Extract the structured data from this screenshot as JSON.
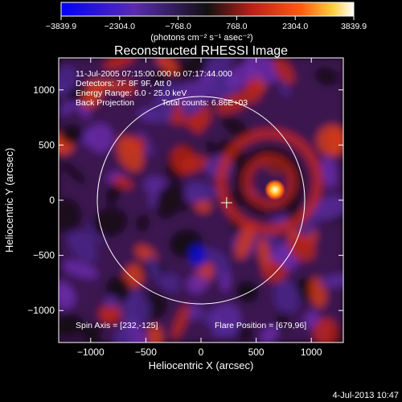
{
  "colorbar": {
    "ticks": [
      "−3839.9",
      "−2304.0",
      "−768.0",
      "768.0",
      "2304.0",
      "3839.9"
    ],
    "units": "(photons cm⁻² s⁻¹ asec⁻²)",
    "min": -3839.9,
    "max": 3839.9
  },
  "footer": {
    "timestamp": "4-Jul-2013 10:47"
  },
  "chart_data": {
    "type": "heatmap",
    "title": "Reconstructed RHESSI Image",
    "xlabel": "Heliocentric X (arcsec)",
    "ylabel": "Heliocentric Y (arcsec)",
    "xlim": [
      -1290,
      1290
    ],
    "ylim": [
      -1290,
      1290
    ],
    "xticks": [
      -1000,
      -500,
      0,
      500,
      1000
    ],
    "yticks": [
      -1000,
      -500,
      0,
      500,
      1000
    ],
    "annotations": {
      "line1": "11-Jul-2005 07:15:00.000 to 07:17:44.000",
      "line2": "Detectors: 7F 8F 9F, Att 0",
      "line3": "Energy Range: 6.0 - 25.0 keV",
      "line4_left": "Back Projection",
      "line4_right": "Total counts: 6.86E+03",
      "bottom_left": "Spin Axis = [232,-125]",
      "bottom_right": "Flare Position = [679,96]"
    },
    "solar_disk": {
      "center": [
        0,
        0
      ],
      "radius": 940
    },
    "spin_axis": [
      232,
      -125
    ],
    "flare_position": [
      679,
      96
    ],
    "colormap": [
      "#0000ff",
      "#6a2a9e",
      "#1a1a1a",
      "#c03020",
      "#ff6020",
      "#ffd040",
      "#ffffff"
    ]
  }
}
